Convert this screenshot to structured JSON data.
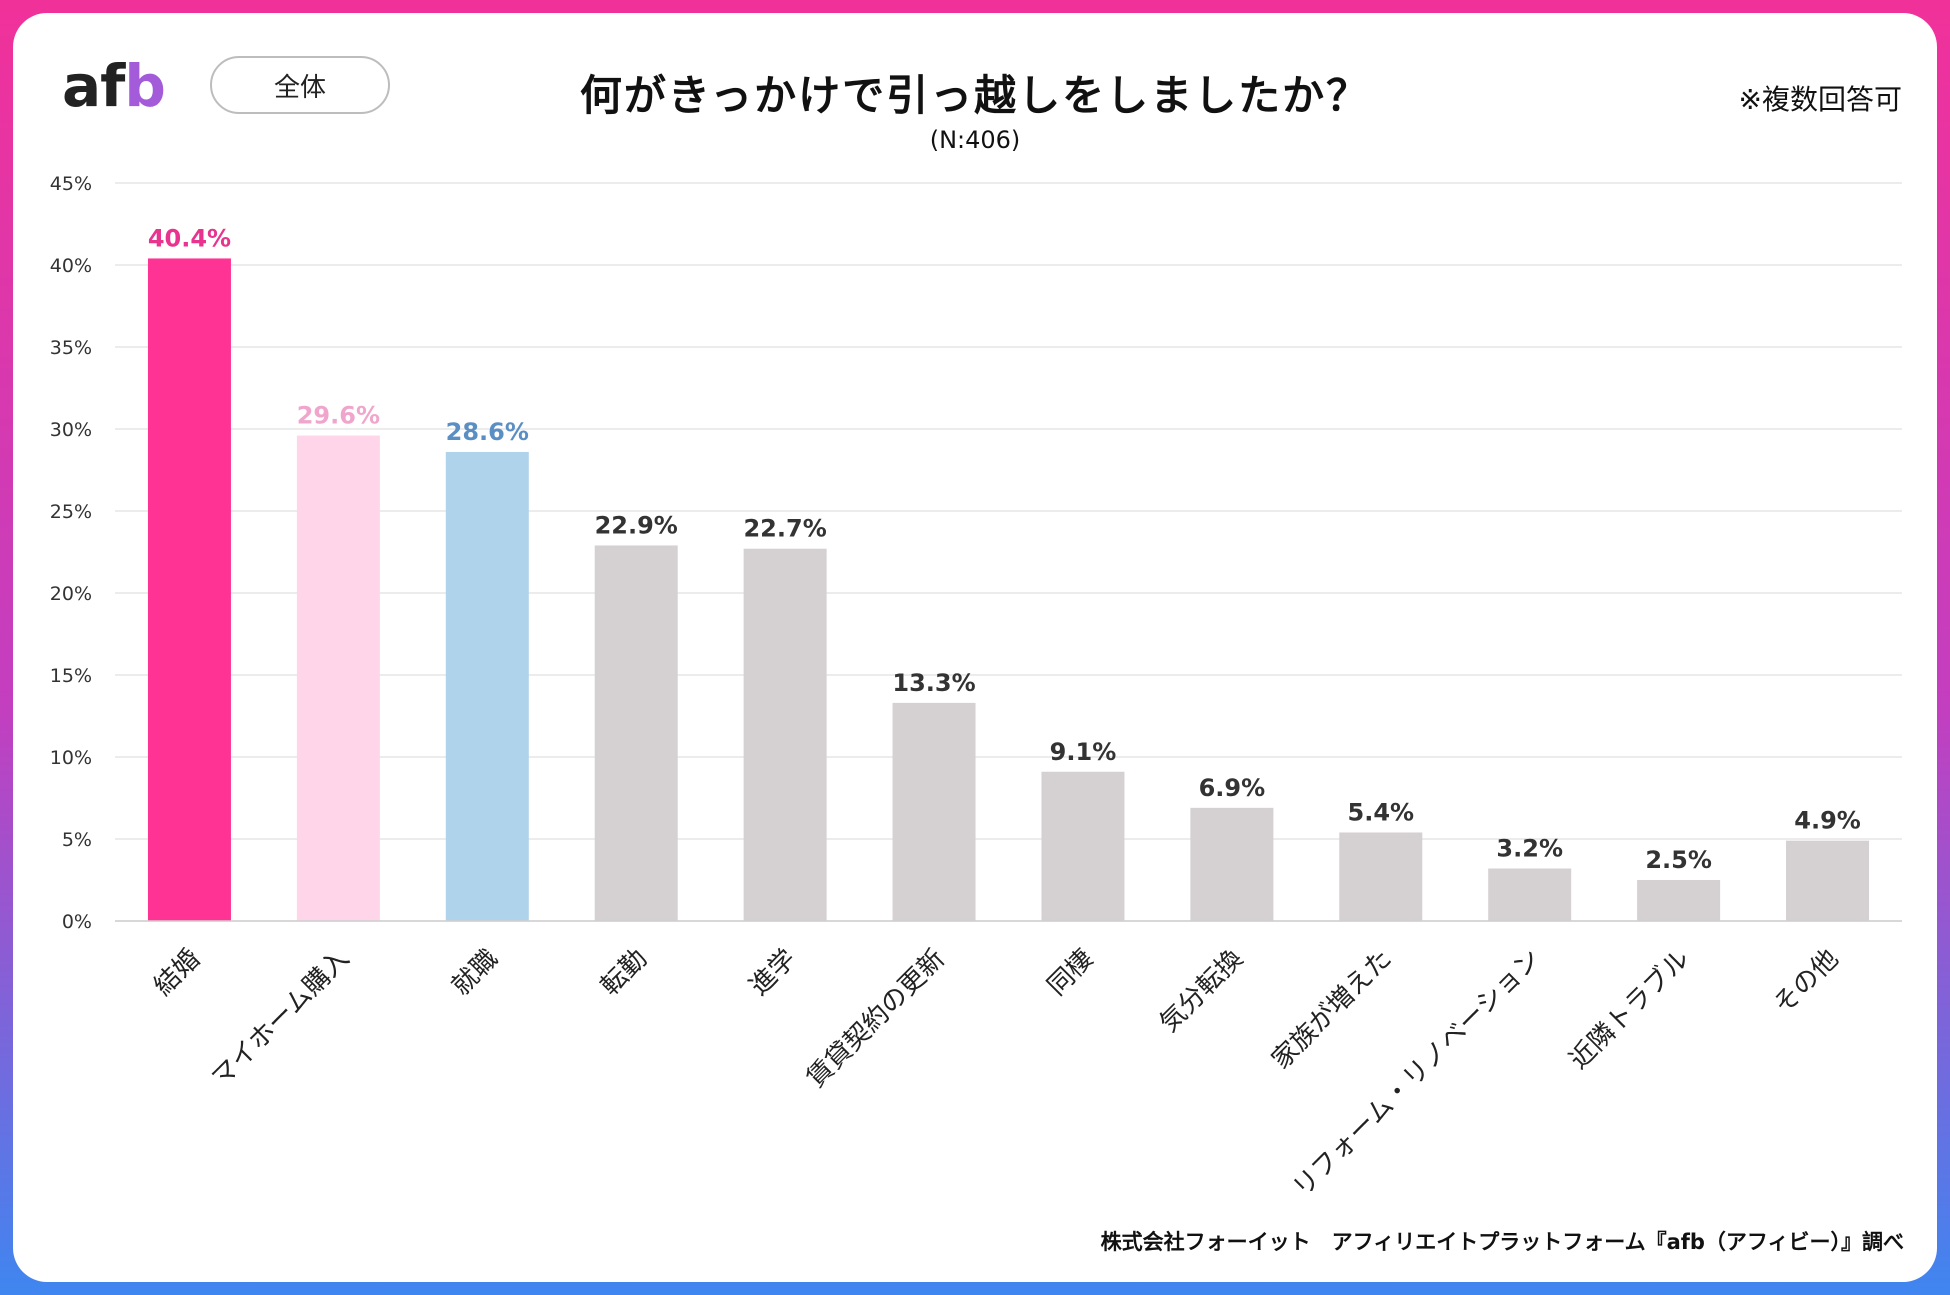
{
  "header": {
    "logo_a": "af",
    "logo_b": "b",
    "segment_label": "全体",
    "note": "※複数回答可",
    "source": "株式会社フォーイット　アフィリエイトプラットフォーム『afb（アフィビー）』調べ"
  },
  "colors": {
    "highlight1": "#ff3394",
    "highlight2": "#ffd5ea",
    "highlight3": "#aed3ea",
    "bar_default": "#d5d1d2",
    "label1": "#e8338f",
    "label2": "#f0a6cc",
    "label3": "#5b8fc4",
    "label_default": "#333333",
    "grid": "#e6e6e6"
  },
  "chart_data": {
    "type": "bar",
    "title": "何がきっかけで引っ越しをしましたか？",
    "subtitle": "(N:406)",
    "xlabel": "",
    "ylabel": "",
    "ylim": [
      0,
      45
    ],
    "yticks": [
      0,
      5,
      10,
      15,
      20,
      25,
      30,
      35,
      40,
      45
    ],
    "ytick_labels": [
      "0%",
      "5%",
      "10%",
      "15%",
      "20%",
      "25%",
      "30%",
      "35%",
      "40%",
      "45%"
    ],
    "grid": true,
    "categories": [
      "結婚",
      "マイホーム購入",
      "就職",
      "転勤",
      "進学",
      "賃貸契約の更新",
      "同棲",
      "気分転換",
      "家族が増えた",
      "リフォーム・リノベーション",
      "近隣トラブル",
      "その他"
    ],
    "values": [
      40.4,
      29.6,
      28.6,
      22.9,
      22.7,
      13.3,
      9.1,
      6.9,
      5.4,
      3.2,
      2.5,
      4.9
    ],
    "value_labels": [
      "40.4%",
      "29.6%",
      "28.6%",
      "22.9%",
      "22.7%",
      "13.3%",
      "9.1%",
      "6.9%",
      "5.4%",
      "3.2%",
      "2.5%",
      "4.9%"
    ]
  }
}
